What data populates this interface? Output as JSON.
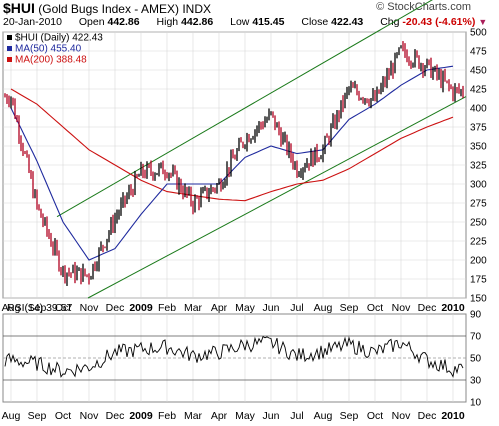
{
  "header": {
    "symbol": "$HUI",
    "name": "(Gold Bugs Index - AMEX)",
    "exchange": "INDX",
    "brand": "© StockCharts.com",
    "date": "20-Jan-2010",
    "open_label": "Open",
    "open": "442.86",
    "high_label": "High",
    "high": "442.86",
    "low_label": "Low",
    "low": "415.45",
    "close_label": "Close",
    "close": "422.43",
    "chg_label": "Chg",
    "chg": "-20.43 (-4.61%)",
    "chg_marker": "▼"
  },
  "colors": {
    "price": "#000000",
    "ma50": "#1f2a9e",
    "ma200": "#cc1111",
    "channel": "#1a7a1a",
    "rsi": "#000000",
    "grid": "#d8d8d8"
  },
  "legend": [
    {
      "label": "$HUI (Daily) 422.43",
      "color": "#000000"
    },
    {
      "label": "MA(50) 455.40",
      "color": "#1f2a9e"
    },
    {
      "label": "MA(200) 388.48",
      "color": "#cc1111"
    }
  ],
  "rsi_label": "RSI(14) 39.57",
  "x_months": [
    "Aug",
    "Sep",
    "Oct",
    "Nov",
    "Dec",
    "2009",
    "Feb",
    "Mar",
    "Apr",
    "May",
    "Jun",
    "Jul",
    "Aug",
    "Sep",
    "Oct",
    "Nov",
    "Dec",
    "2010"
  ],
  "chart_data": [
    {
      "type": "line",
      "title": "$HUI (Gold Bugs Index - AMEX) INDX",
      "x": [
        "2008-08",
        "2008-09",
        "2008-10",
        "2008-11",
        "2008-12",
        "2009-01",
        "2009-02",
        "2009-03",
        "2009-04",
        "2009-05",
        "2009-06",
        "2009-07",
        "2009-08",
        "2009-09",
        "2009-10",
        "2009-11",
        "2009-12",
        "2010-01"
      ],
      "series": [
        {
          "name": "$HUI (Daily)",
          "values": [
            415,
            270,
            185,
            180,
            255,
            315,
            320,
            275,
            300,
            360,
            390,
            320,
            345,
            425,
            410,
            475,
            455,
            422
          ]
        },
        {
          "name": "MA(50)",
          "values": [
            400,
            330,
            250,
            200,
            215,
            260,
            300,
            300,
            300,
            335,
            350,
            340,
            345,
            385,
            405,
            430,
            450,
            455
          ]
        },
        {
          "name": "MA(200)",
          "values": [
            425,
            405,
            375,
            345,
            325,
            305,
            290,
            285,
            280,
            278,
            290,
            300,
            305,
            320,
            340,
            360,
            375,
            388
          ]
        }
      ],
      "ylim": [
        150,
        500
      ],
      "yticks": [
        150,
        175,
        200,
        225,
        250,
        275,
        300,
        325,
        350,
        375,
        400,
        425,
        450,
        475,
        500
      ],
      "grid": true,
      "legend_position": "top-left"
    },
    {
      "type": "line",
      "title": "RSI(14) 39.57",
      "x": [
        "2008-08",
        "2008-09",
        "2008-10",
        "2008-11",
        "2008-12",
        "2009-01",
        "2009-02",
        "2009-03",
        "2009-04",
        "2009-05",
        "2009-06",
        "2009-07",
        "2009-08",
        "2009-09",
        "2009-10",
        "2009-11",
        "2009-12",
        "2010-01"
      ],
      "series": [
        {
          "name": "RSI(14)",
          "values": [
            48,
            45,
            38,
            42,
            55,
            58,
            60,
            52,
            55,
            62,
            64,
            52,
            56,
            62,
            55,
            64,
            48,
            40
          ]
        }
      ],
      "ylim": [
        10,
        90
      ],
      "yticks": [
        10,
        30,
        50,
        70,
        90
      ],
      "reference_lines": [
        30,
        70
      ],
      "grid": true
    }
  ]
}
